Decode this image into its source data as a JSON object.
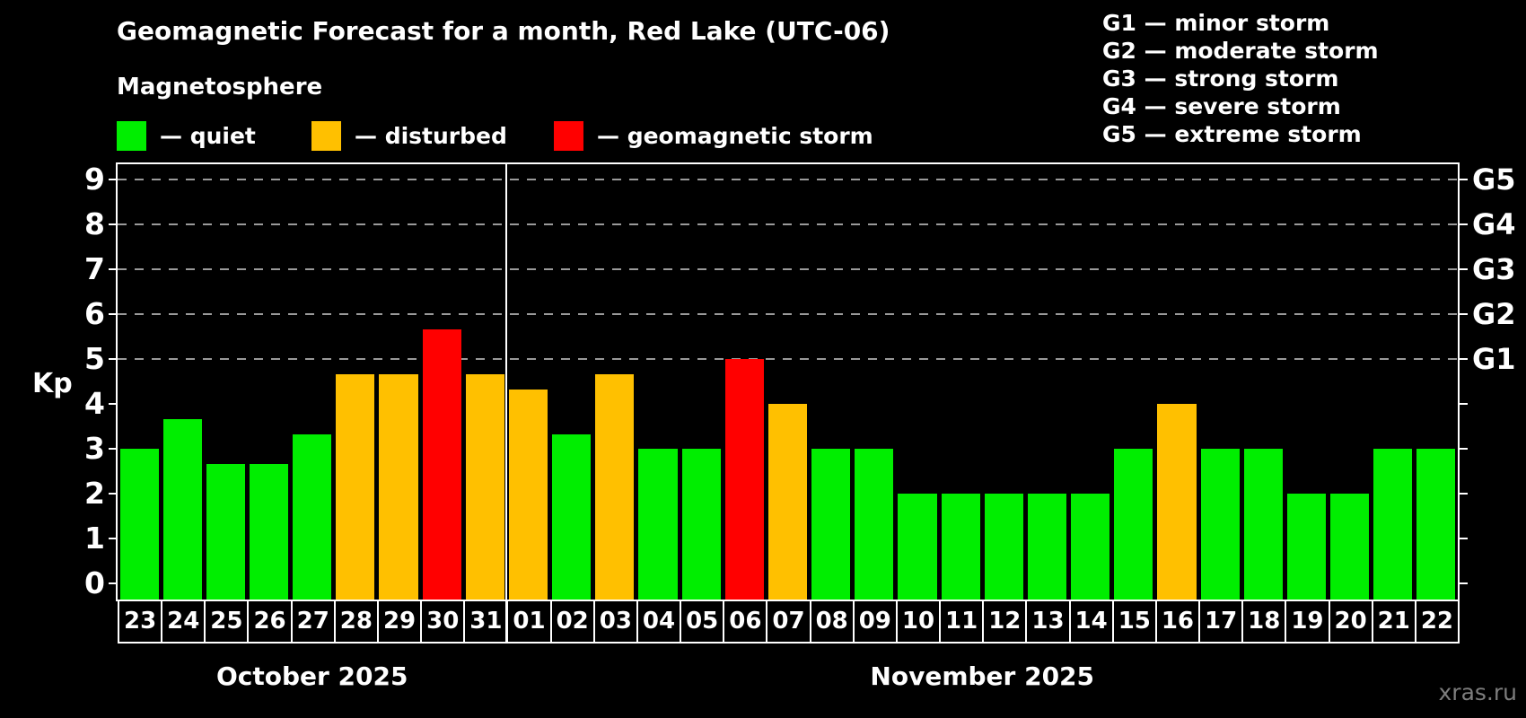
{
  "title": "Geomagnetic Forecast for a month, Red Lake (UTC-06)",
  "subtitle": "Magnetosphere",
  "legend": {
    "quiet": "— quiet",
    "disturbed": "— disturbed",
    "storm": "— geomagnetic storm"
  },
  "g_legend": [
    "G1 — minor storm",
    "G2 — moderate storm",
    "G3 — strong storm",
    "G4 — severe storm",
    "G5 — extreme storm"
  ],
  "watermark": "xras.ru",
  "colors": {
    "quiet": "#00ee00",
    "disturbed": "#ffc000",
    "storm": "#ff0000",
    "grid": "#9a9a9a",
    "axis": "#ffffff",
    "watermark": "#7d7d7d"
  },
  "chart_data": {
    "type": "bar",
    "ylabel": "Kp",
    "ylim": [
      0,
      9
    ],
    "yticks": [
      0,
      1,
      2,
      3,
      4,
      5,
      6,
      7,
      8,
      9
    ],
    "gridlines": [
      5,
      6,
      7,
      8,
      9
    ],
    "right_axis_labels": [
      {
        "value": 5,
        "label": "G1"
      },
      {
        "value": 6,
        "label": "G2"
      },
      {
        "value": 7,
        "label": "G3"
      },
      {
        "value": 8,
        "label": "G4"
      },
      {
        "value": 9,
        "label": "G5"
      }
    ],
    "months": [
      {
        "label": "October 2025",
        "days": 9
      },
      {
        "label": "November 2025",
        "days": 22
      }
    ],
    "bars": [
      {
        "day": "23",
        "value": 3.0,
        "state": "quiet"
      },
      {
        "day": "24",
        "value": 3.67,
        "state": "quiet"
      },
      {
        "day": "25",
        "value": 2.67,
        "state": "quiet"
      },
      {
        "day": "26",
        "value": 2.67,
        "state": "quiet"
      },
      {
        "day": "27",
        "value": 3.33,
        "state": "quiet"
      },
      {
        "day": "28",
        "value": 4.67,
        "state": "disturbed"
      },
      {
        "day": "29",
        "value": 4.67,
        "state": "disturbed"
      },
      {
        "day": "30",
        "value": 5.67,
        "state": "storm"
      },
      {
        "day": "31",
        "value": 4.67,
        "state": "disturbed"
      },
      {
        "day": "01",
        "value": 4.33,
        "state": "disturbed"
      },
      {
        "day": "02",
        "value": 3.33,
        "state": "quiet"
      },
      {
        "day": "03",
        "value": 4.67,
        "state": "disturbed"
      },
      {
        "day": "04",
        "value": 3.0,
        "state": "quiet"
      },
      {
        "day": "05",
        "value": 3.0,
        "state": "quiet"
      },
      {
        "day": "06",
        "value": 5.0,
        "state": "storm"
      },
      {
        "day": "07",
        "value": 4.0,
        "state": "disturbed"
      },
      {
        "day": "08",
        "value": 3.0,
        "state": "quiet"
      },
      {
        "day": "09",
        "value": 3.0,
        "state": "quiet"
      },
      {
        "day": "10",
        "value": 2.0,
        "state": "quiet"
      },
      {
        "day": "11",
        "value": 2.0,
        "state": "quiet"
      },
      {
        "day": "12",
        "value": 2.0,
        "state": "quiet"
      },
      {
        "day": "13",
        "value": 2.0,
        "state": "quiet"
      },
      {
        "day": "14",
        "value": 2.0,
        "state": "quiet"
      },
      {
        "day": "15",
        "value": 3.0,
        "state": "quiet"
      },
      {
        "day": "16",
        "value": 4.0,
        "state": "disturbed"
      },
      {
        "day": "17",
        "value": 3.0,
        "state": "quiet"
      },
      {
        "day": "18",
        "value": 3.0,
        "state": "quiet"
      },
      {
        "day": "19",
        "value": 2.0,
        "state": "quiet"
      },
      {
        "day": "20",
        "value": 2.0,
        "state": "quiet"
      },
      {
        "day": "21",
        "value": 3.0,
        "state": "quiet"
      },
      {
        "day": "22",
        "value": 3.0,
        "state": "quiet"
      }
    ]
  }
}
